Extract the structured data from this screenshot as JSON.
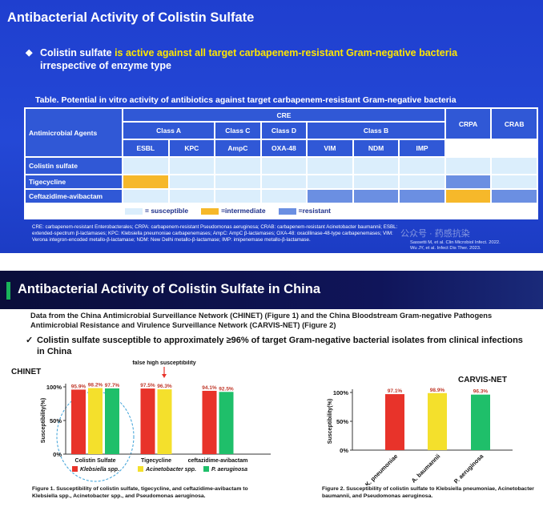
{
  "slide1": {
    "title": "Antibacterial Activity of Colistin Sulfate",
    "bullet": [
      "Colistin sulfate",
      "is active against all target carbapenem-resistant Gram-negative bacteria",
      "irrespective of enzyme type"
    ],
    "caption": "Table. Potential in vitro activity of antibiotics against target carbapenem-resistant Gram-negative bacteria",
    "table": {
      "agents_header": "Antimicrobial Agents",
      "group": "CRE",
      "classes": [
        "Class A",
        "Class C",
        "Class D",
        "Class B"
      ],
      "others": [
        "CRPA",
        "CRAB"
      ],
      "enzymes": [
        "ESBL",
        "KPC",
        "AmpC",
        "OXA-48",
        "VIM",
        "NDM",
        "IMP"
      ],
      "rows": [
        {
          "agent": "Colistin sulfate",
          "colors": [
            "#dbeefc",
            "#dbeefc",
            "#dbeefc",
            "#dbeefc",
            "#dbeefc",
            "#dbeefc",
            "#dbeefc",
            "#dbeefc",
            "#dbeefc"
          ]
        },
        {
          "agent": "Tigecycline",
          "colors": [
            "#f6b82a",
            "#dbeefc",
            "#dbeefc",
            "#dbeefc",
            "#dbeefc",
            "#dbeefc",
            "#dbeefc",
            "#6b8fe2",
            "#dbeefc"
          ]
        },
        {
          "agent": "Ceftazidime-avibactam",
          "colors": [
            "#dbeefc",
            "#dbeefc",
            "#dbeefc",
            "#dbeefc",
            "#6b8fe2",
            "#6b8fe2",
            "#6b8fe2",
            "#f6b82a",
            "#6b8fe2"
          ]
        }
      ],
      "legend": [
        {
          "label": "= susceptible",
          "color": "#dbeefc"
        },
        {
          "label": "=intermediate",
          "color": "#f6b82a"
        },
        {
          "label": "=resistant",
          "color": "#6b8fe2"
        }
      ]
    },
    "footnote": "CRE: carbapenem-resistant Enterobacterales; CRPA: carbapenem-resistant Pseudomonas aeruginosa; CRAB: carbapenem-resistant Acinetobacter baumannii; ESBL: extended-spectrum β-lactamases; KPC: Klebsiella pneumoniae carbapenemases; AmpC: AmpC β-lactamases; OXA-48: oxacillinase-48-type carbapenemases; VIM: Verona integron-encoded metallo-β-lactamase; NDM: New Delhi metallo-β-lactamase; IMP: imipenemase metallo-β-lactamase.",
    "references": [
      "Sassetti M, et al. Clin Microbiol Infect. 2022.",
      "Wu JY, et al. Infect Dis Ther. 2023."
    ],
    "watermark": "公众号 · 药感抗染"
  },
  "slide2": {
    "title": "Antibacterial Activity of Colistin Sulfate in China",
    "intro": "Data from the China Antimicrobial Surveillance Network (CHINET) (Figure 1) and the China Bloodstream Gram-negative Pathogens Antimicrobial Resistance and Virulence Surveillance Network (CARVIS-NET) (Figure 2)",
    "check": "Colistin sulfate susceptible to approximately ≥96% of target Gram-negative bacterial isolates from clinical infections in China",
    "captions": [
      "Figure 1. Susceptibility of colistin sulfate, tigecycline, and ceftazidime-avibactam to Klebsiella spp., Acinetobacter spp., and Pseudomonas aeruginosa.",
      "Figure 2. Susceptibility of colistin sulfate to Klebsiella pneumoniae, Acinetobacter baumannii, and Pseudomonas aeruginosa."
    ]
  },
  "chart_data": [
    {
      "type": "bar",
      "title": "CHINET",
      "annotation": "false high susceptibility",
      "ylabel": "Susceptibility(%)",
      "categories": [
        "Colistin Sulfate",
        "Tigecycline",
        "ceftazidime-avibactam"
      ],
      "series": [
        {
          "name": "Klebsiella spp.",
          "color": "#e8332a",
          "values": [
            95.9,
            97.5,
            94.1
          ],
          "value_labels": [
            "95.9%",
            "97.5%",
            "94.1%"
          ]
        },
        {
          "name": "Acinetobacter spp.",
          "color": "#f4e02c",
          "values": [
            98.2,
            96.3,
            null
          ],
          "value_labels": [
            "98.2%",
            "96.3%",
            null
          ]
        },
        {
          "name": "P. aeruginosa",
          "color": "#1fbf6a",
          "values": [
            97.7,
            null,
            92.5
          ],
          "value_labels": [
            "97.7%",
            null,
            "92.5%"
          ]
        }
      ],
      "ylim": [
        0,
        100
      ],
      "yticks": [
        {
          "value": 0,
          "label": "0%"
        },
        {
          "value": 50,
          "label": "50%"
        },
        {
          "value": 100,
          "label": "100%"
        }
      ]
    },
    {
      "type": "bar",
      "title": "CARVIS-NET",
      "ylabel": "Susceptibility(%)",
      "categories": [
        "K. pneumoniae",
        "A. baumannii",
        "P. aeruginosa"
      ],
      "values": [
        97.1,
        98.9,
        96.3
      ],
      "value_labels": [
        "97.1%",
        "98.9%",
        "96.3%"
      ],
      "colors": [
        "#e8332a",
        "#f4e02c",
        "#1fbf6a"
      ],
      "ylim": [
        0,
        100
      ],
      "yticks": [
        {
          "value": 0,
          "label": "0%"
        },
        {
          "value": 50,
          "label": "50%"
        },
        {
          "value": 100,
          "label": "100%"
        }
      ]
    }
  ]
}
